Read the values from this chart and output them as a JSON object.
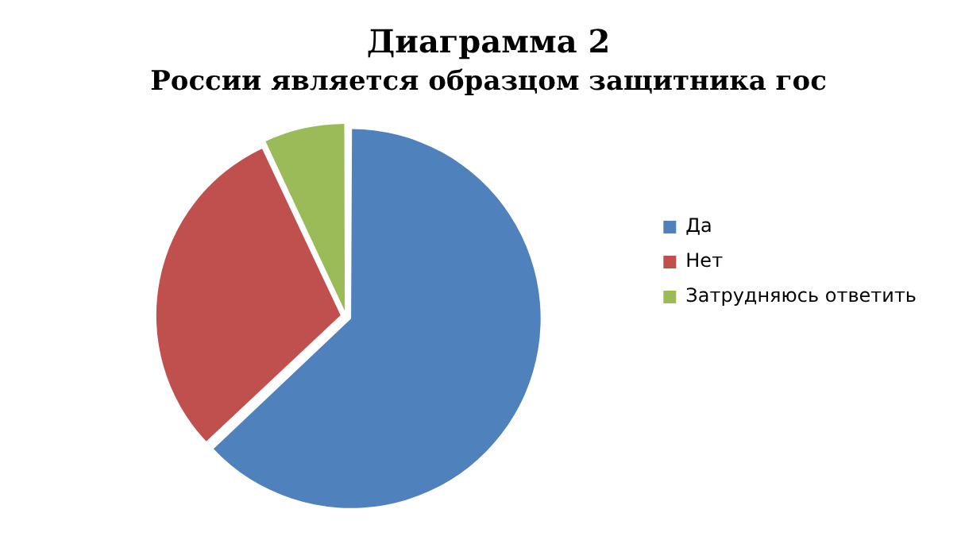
{
  "chart_data": {
    "type": "pie",
    "title": "Диаграмма 2",
    "subtitle": "России является образцом защитника гос",
    "categories": [
      "Да",
      "Нет",
      "Затрудняюсь ответить"
    ],
    "values": [
      63,
      30,
      7
    ],
    "colors": [
      "#4f81bd",
      "#c0504d",
      "#9bbb59"
    ],
    "legend": "right"
  }
}
